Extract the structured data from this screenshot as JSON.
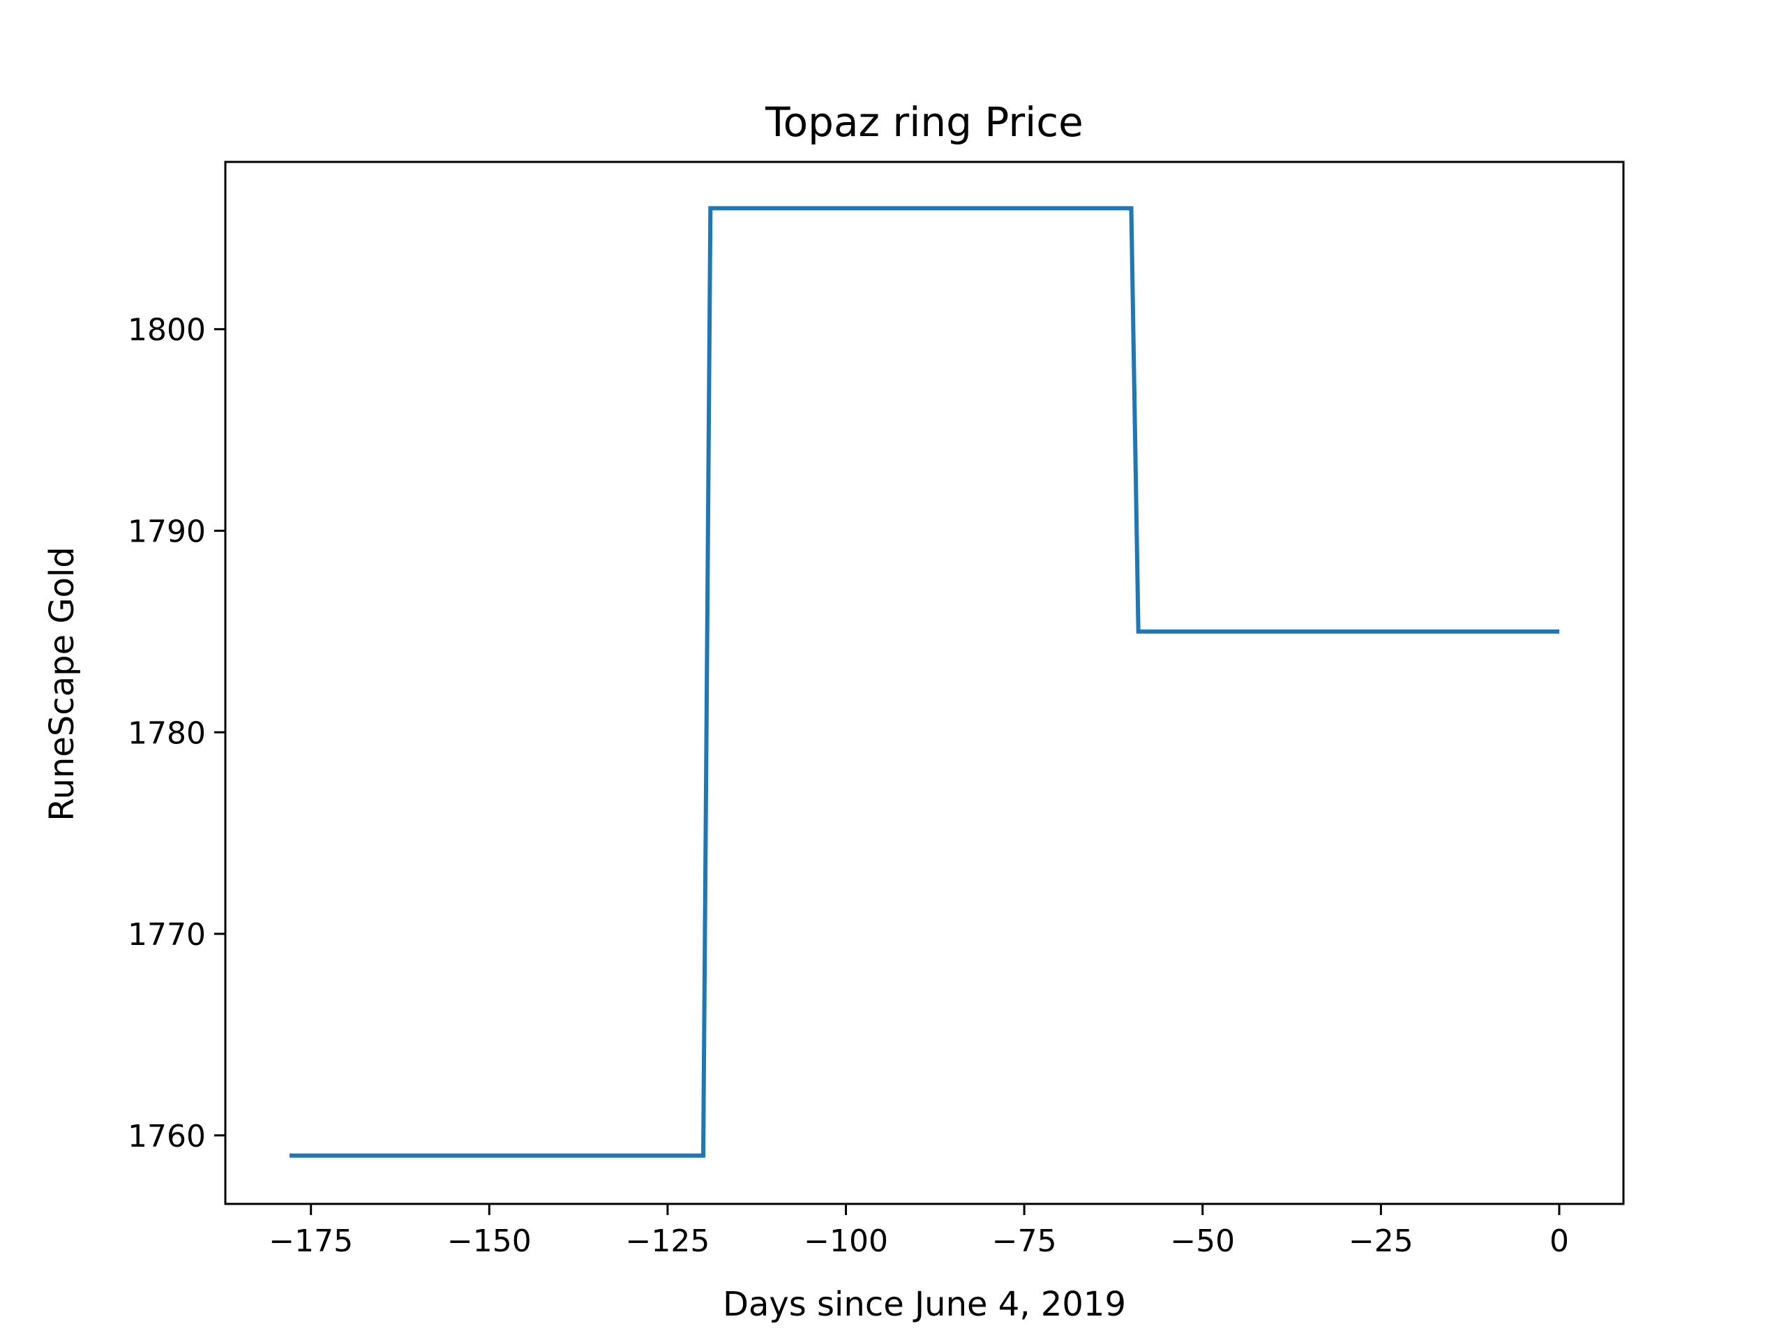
{
  "chart_data": {
    "type": "line",
    "title": "Topaz ring Price",
    "xlabel": "Days since June 4, 2019",
    "ylabel": "RuneScape Gold",
    "xlim": [
      -187,
      9
    ],
    "ylim": [
      1756.6,
      1808.3
    ],
    "xticks": [
      -175,
      -150,
      -125,
      -100,
      -75,
      -50,
      -25,
      0
    ],
    "yticks": [
      1760,
      1770,
      1780,
      1790,
      1800
    ],
    "grid": false,
    "legend": "none",
    "series": [
      {
        "color": "#1f77b4",
        "x": [
          -178,
          -120,
          -119,
          -60,
          -59,
          0
        ],
        "y": [
          1759,
          1759,
          1806,
          1806,
          1785,
          1785
        ]
      }
    ]
  }
}
